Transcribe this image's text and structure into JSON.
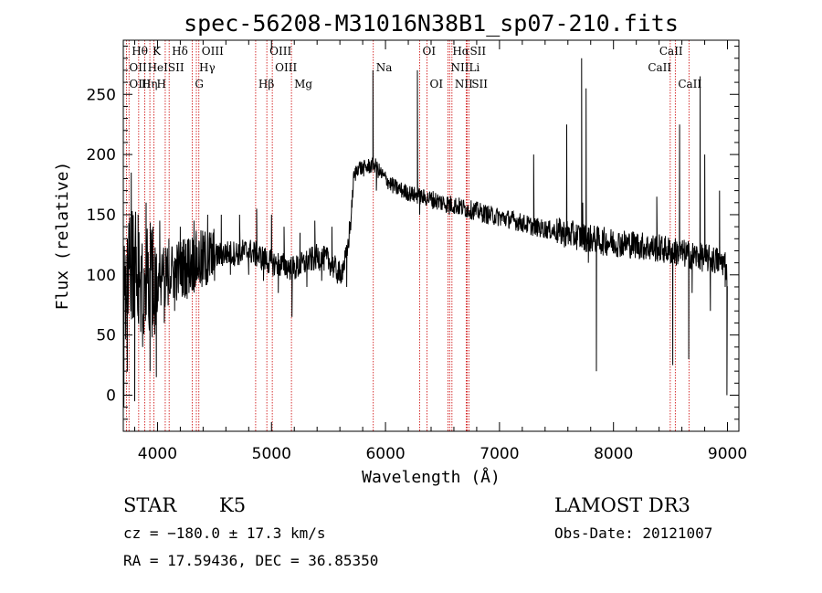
{
  "chart_data": {
    "type": "line",
    "title": "spec-56208-M31016N38B1_sp07-210.fits",
    "xlabel": "Wavelength (Å)",
    "ylabel": "Flux (relative)",
    "xlim": [
      3700,
      9100
    ],
    "ylim": [
      -30,
      295
    ],
    "xticks": [
      4000,
      5000,
      6000,
      7000,
      8000,
      9000
    ],
    "yticks": [
      0,
      50,
      100,
      150,
      200,
      250
    ],
    "grid": false,
    "series": [
      {
        "knots": [
          [
            3700,
            80
          ],
          [
            3760,
            105
          ],
          [
            3800,
            110
          ],
          [
            3850,
            100
          ],
          [
            3900,
            95
          ],
          [
            3950,
            95
          ],
          [
            4000,
            98
          ],
          [
            4100,
            100
          ],
          [
            4200,
            105
          ],
          [
            4300,
            110
          ],
          [
            4400,
            112
          ],
          [
            4500,
            115
          ],
          [
            4600,
            118
          ],
          [
            4700,
            118
          ],
          [
            4800,
            120
          ],
          [
            4900,
            115
          ],
          [
            5000,
            110
          ],
          [
            5100,
            108
          ],
          [
            5200,
            105
          ],
          [
            5300,
            110
          ],
          [
            5400,
            115
          ],
          [
            5500,
            112
          ],
          [
            5600,
            100
          ],
          [
            5660,
            115
          ],
          [
            5700,
            150
          ],
          [
            5720,
            180
          ],
          [
            5760,
            190
          ],
          [
            5800,
            188
          ],
          [
            5850,
            190
          ],
          [
            5900,
            192
          ],
          [
            5950,
            185
          ],
          [
            6000,
            180
          ],
          [
            6050,
            175
          ],
          [
            6100,
            172
          ],
          [
            6200,
            168
          ],
          [
            6300,
            165
          ],
          [
            6400,
            163
          ],
          [
            6500,
            160
          ],
          [
            6600,
            158
          ],
          [
            6700,
            155
          ],
          [
            6800,
            153
          ],
          [
            6900,
            150
          ],
          [
            7000,
            148
          ],
          [
            7100,
            146
          ],
          [
            7200,
            143
          ],
          [
            7300,
            140
          ],
          [
            7400,
            138
          ],
          [
            7500,
            136
          ],
          [
            7600,
            134
          ],
          [
            7700,
            132
          ],
          [
            7800,
            130
          ],
          [
            7900,
            128
          ],
          [
            8000,
            127
          ],
          [
            8100,
            126
          ],
          [
            8200,
            125
          ],
          [
            8300,
            123
          ],
          [
            8400,
            122
          ],
          [
            8500,
            120
          ],
          [
            8600,
            118
          ],
          [
            8700,
            116
          ],
          [
            8800,
            114
          ],
          [
            8900,
            112
          ],
          [
            8980,
            110
          ],
          [
            9000,
            100
          ]
        ],
        "features": [
          [
            3705,
            -10
          ],
          [
            3735,
            20
          ],
          [
            3770,
            185
          ],
          [
            3800,
            -5
          ],
          [
            3830,
            150
          ],
          [
            3870,
            40
          ],
          [
            3900,
            160
          ],
          [
            3935,
            20
          ],
          [
            3960,
            140
          ],
          [
            3990,
            15
          ],
          [
            4020,
            145
          ],
          [
            4060,
            60
          ],
          [
            4100,
            130
          ],
          [
            4150,
            70
          ],
          [
            4200,
            140
          ],
          [
            4260,
            80
          ],
          [
            4320,
            145
          ],
          [
            4390,
            90
          ],
          [
            4440,
            150
          ],
          [
            4500,
            95
          ],
          [
            4560,
            150
          ],
          [
            4640,
            100
          ],
          [
            4720,
            150
          ],
          [
            4800,
            100
          ],
          [
            4870,
            155
          ],
          [
            4930,
            95
          ],
          [
            5000,
            150
          ],
          [
            5060,
            85
          ],
          [
            5110,
            140
          ],
          [
            5180,
            65
          ],
          [
            5250,
            135
          ],
          [
            5310,
            90
          ],
          [
            5380,
            145
          ],
          [
            5440,
            95
          ],
          [
            5530,
            140
          ],
          [
            5600,
            95
          ],
          [
            5660,
            90
          ],
          [
            5890,
            270
          ],
          [
            5920,
            170
          ],
          [
            6280,
            270
          ],
          [
            6300,
            150
          ],
          [
            6560,
            150
          ],
          [
            7300,
            200
          ],
          [
            7590,
            225
          ],
          [
            7720,
            280
          ],
          [
            7730,
            160
          ],
          [
            7760,
            255
          ],
          [
            7780,
            110
          ],
          [
            7850,
            20
          ],
          [
            8380,
            165
          ],
          [
            8520,
            25
          ],
          [
            8580,
            225
          ],
          [
            8660,
            30
          ],
          [
            8690,
            85
          ],
          [
            8760,
            265
          ],
          [
            8800,
            200
          ],
          [
            8850,
            70
          ],
          [
            8930,
            170
          ],
          [
            8980,
            90
          ],
          [
            8995,
            0
          ]
        ]
      }
    ],
    "lines": [
      {
        "label": "Hθ",
        "wave": 3750,
        "row": 0,
        "dx": 3
      },
      {
        "label": "K",
        "wave": 3933,
        "row": 0,
        "dx": 3
      },
      {
        "label": "Hδ",
        "wave": 4102,
        "row": 0,
        "dx": 3
      },
      {
        "label": "OIII",
        "wave": 4363,
        "row": 0,
        "dx": 3
      },
      {
        "label": "OII",
        "wave": 3727,
        "row": 1,
        "dx": 3
      },
      {
        "label": "HeI",
        "wave": 3889,
        "row": 1,
        "dx": 3
      },
      {
        "label": "SII",
        "wave": 4068,
        "row": 1,
        "dx": 3
      },
      {
        "label": "Hγ",
        "wave": 4341,
        "row": 1,
        "dx": 3
      },
      {
        "label": "OIII",
        "wave": 3727,
        "row": 2,
        "dx": 3
      },
      {
        "label": "Hη",
        "wave": 3835,
        "row": 2,
        "dx": 3
      },
      {
        "label": "H",
        "wave": 3968,
        "row": 2,
        "dx": 3
      },
      {
        "label": "G",
        "wave": 4304,
        "row": 2,
        "dx": 3
      },
      {
        "label": "OIII",
        "wave": 4959,
        "row": 0,
        "dx": 3
      },
      {
        "label": "OIII",
        "wave": 5007,
        "row": 1,
        "dx": 3
      },
      {
        "label": "Hβ",
        "wave": 4861,
        "row": 2,
        "dx": 3
      },
      {
        "label": "Mg",
        "wave": 5175,
        "row": 2,
        "dx": 3
      },
      {
        "label": "Na",
        "wave": 5893,
        "row": 1,
        "dx": 3
      },
      {
        "label": "OI",
        "wave": 6300,
        "row": 0,
        "dx": 3
      },
      {
        "label": "OI",
        "wave": 6364,
        "row": 2,
        "dx": 3
      },
      {
        "label": "Hα",
        "wave": 6563,
        "row": 0,
        "dx": 3
      },
      {
        "label": "SII",
        "wave": 6716,
        "row": 0,
        "dx": 3
      },
      {
        "label": "NII",
        "wave": 6548,
        "row": 1,
        "dx": 3
      },
      {
        "label": "Li",
        "wave": 6708,
        "row": 1,
        "dx": 3
      },
      {
        "label": "NII",
        "wave": 6583,
        "row": 2,
        "dx": 3
      },
      {
        "label": "SII",
        "wave": 6731,
        "row": 2,
        "dx": 3
      },
      {
        "label": "CaII",
        "wave": 8498,
        "row": 0,
        "dx": -12
      },
      {
        "label": "CaII",
        "wave": 8542,
        "row": 1,
        "dx": -30
      },
      {
        "label": "CaII",
        "wave": 8662,
        "row": 2,
        "dx": -12
      }
    ],
    "line_color": "#cc0000"
  },
  "info": {
    "object_class": "STAR",
    "subclass": "K5",
    "survey": "LAMOST DR3",
    "cz": "cz = −180.0 ± 17.3 km/s",
    "obs_date": "Obs-Date: 20121007",
    "radec": "RA =  17.59436, DEC =  36.85350"
  }
}
